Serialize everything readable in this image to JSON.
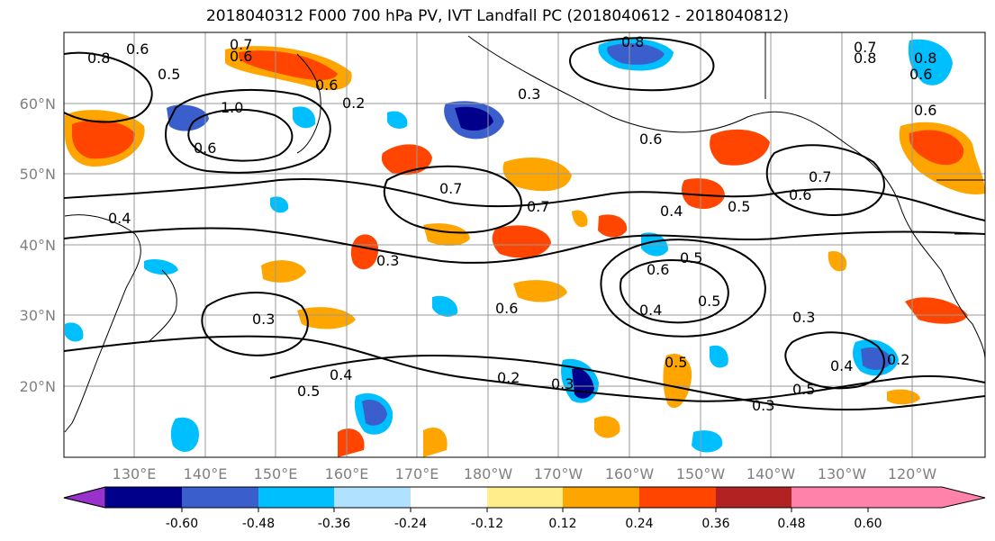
{
  "title": "2018040312 F000 700 hPa PV, IVT Landfall PC (2018040612 - 2018040812)",
  "map": {
    "lon_labels": [
      "130°E",
      "140°E",
      "150°E",
      "160°E",
      "170°E",
      "180°W",
      "170°W",
      "160°W",
      "150°W",
      "140°W",
      "130°W",
      "120°W"
    ],
    "lat_labels": [
      "60°N",
      "50°N",
      "40°N",
      "30°N",
      "20°N"
    ],
    "contour_labels": [
      "0.8",
      "0.6",
      "0.5",
      "0.7",
      "0.6",
      "0.3",
      "1.0",
      "0.6",
      "0.7",
      "0.7",
      "0.3",
      "0.6",
      "0.2",
      "0.3",
      "0.6",
      "0.5",
      "0.4",
      "0.6",
      "0.7",
      "0.6",
      "0.5",
      "0.4",
      "0.5",
      "0.3",
      "0.4",
      "0.2",
      "0.5",
      "0.3",
      "0.8",
      "0.7",
      "0.8",
      "0.6",
      "0.4",
      "0.5",
      "0.6",
      "0.5",
      "0.4",
      "0.3",
      "0.2",
      "0.8",
      "0.6"
    ]
  },
  "colorbar": {
    "ticks": [
      "-0.60",
      "-0.48",
      "-0.36",
      "-0.24",
      "-0.12",
      "0.12",
      "0.24",
      "0.36",
      "0.48",
      "0.60"
    ],
    "colors": [
      "#9932cc",
      "#00008b",
      "#3a5fcd",
      "#00bfff",
      "#b0e2ff",
      "#ffffff",
      "#ffec8b",
      "#ffa500",
      "#ff4500",
      "#b22222",
      "#ff82ab"
    ]
  }
}
